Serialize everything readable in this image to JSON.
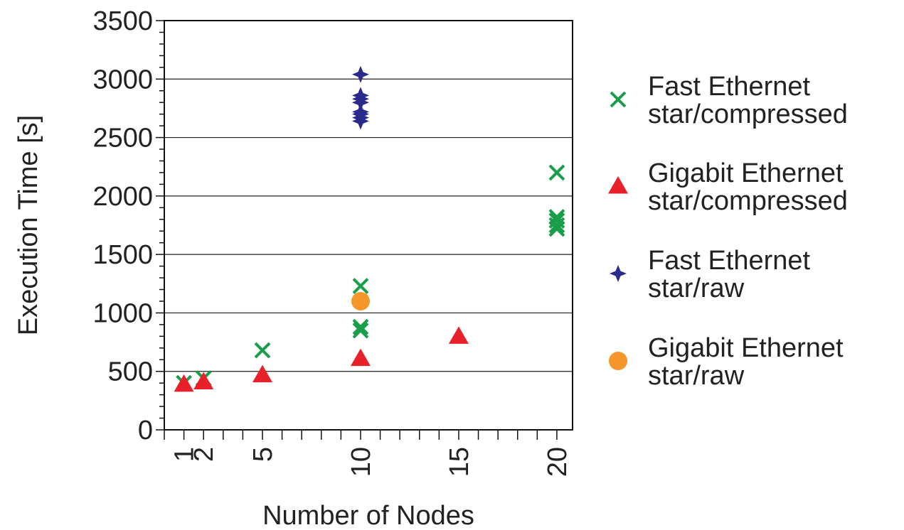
{
  "chart_data": {
    "type": "scatter",
    "title": "",
    "xlabel": "Number of Nodes",
    "ylabel": "Execution Time [s]",
    "xlim": [
      0,
      20.8
    ],
    "ylim": [
      0,
      3500
    ],
    "x_ticks": [
      1,
      2,
      5,
      10,
      15,
      20
    ],
    "y_ticks": [
      0,
      500,
      1000,
      1500,
      2000,
      2500,
      3000,
      3500
    ],
    "grid": "horizontal",
    "legend_position": "right",
    "series": [
      {
        "name": "Fast Ethernet star/compressed",
        "name_lines": [
          "Fast Ethernet",
          "star/compressed"
        ],
        "marker": "x",
        "color": "#1a9e4a",
        "points": [
          [
            1,
            400
          ],
          [
            2,
            440
          ],
          [
            5,
            680
          ],
          [
            10,
            850
          ],
          [
            10,
            880
          ],
          [
            10,
            1230
          ],
          [
            20,
            1720
          ],
          [
            20,
            1750
          ],
          [
            20,
            1790
          ],
          [
            20,
            1820
          ],
          [
            20,
            2200
          ]
        ]
      },
      {
        "name": "Gigabit Ethernet star/compressed",
        "name_lines": [
          "Gigabit Ethernet",
          "star/compressed"
        ],
        "marker": "triangle",
        "color": "#e8202a",
        "points": [
          [
            1,
            390
          ],
          [
            2,
            410
          ],
          [
            5,
            470
          ],
          [
            10,
            610
          ],
          [
            15,
            800
          ]
        ]
      },
      {
        "name": "Fast Ethernet star/raw",
        "name_lines": [
          "Fast Ethernet",
          "star/raw"
        ],
        "marker": "star4",
        "color": "#2a2a8c",
        "points": [
          [
            10,
            2640
          ],
          [
            10,
            2670
          ],
          [
            10,
            2700
          ],
          [
            10,
            2720
          ],
          [
            10,
            2800
          ],
          [
            10,
            2830
          ],
          [
            10,
            2860
          ],
          [
            10,
            3040
          ]
        ]
      },
      {
        "name": "Gigabit Ethernet star/raw",
        "name_lines": [
          "Gigabit Ethernet",
          "star/raw"
        ],
        "marker": "circle",
        "color": "#f5952a",
        "points": [
          [
            10,
            1100
          ]
        ]
      }
    ]
  }
}
